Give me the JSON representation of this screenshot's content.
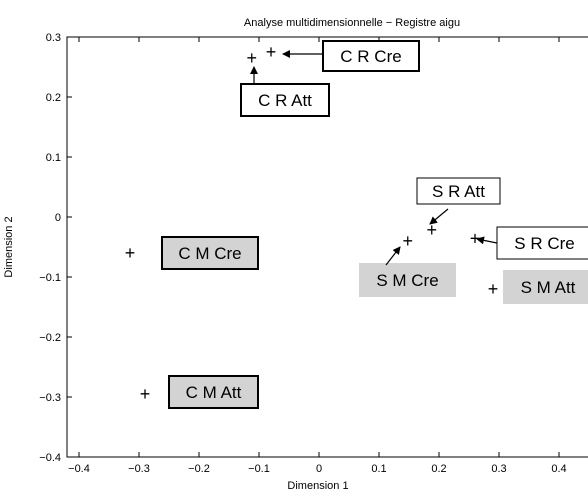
{
  "chart_data": {
    "type": "scatter",
    "title": "Analyse multidimensionnelle − Registre aigu",
    "xlabel": "Dimension 1",
    "ylabel": "Dimension 2",
    "xlim": [
      -0.42,
      0.48
    ],
    "ylim": [
      -0.4,
      0.3
    ],
    "xticks": [
      "−0.4",
      "−0.3",
      "−0.2",
      "−0.1",
      "0",
      "0.1",
      "0.2",
      "0.3",
      "0.4"
    ],
    "xtick_values": [
      -0.4,
      -0.3,
      -0.2,
      -0.1,
      0,
      0.1,
      0.2,
      0.3,
      0.4
    ],
    "yticks": [
      "0.3",
      "0.2",
      "0.1",
      "0",
      "−0.1",
      "−0.2",
      "−0.3",
      "−0.4"
    ],
    "ytick_values": [
      0.3,
      0.2,
      0.1,
      0,
      -0.1,
      -0.2,
      -0.3,
      -0.4
    ],
    "grid": false,
    "label_fill_colors": {
      "white": "#ffffff",
      "gray": "#d3d3d3"
    },
    "points": [
      {
        "label": "C R Cre",
        "x": -0.08,
        "y": 0.275,
        "fill": "white",
        "border": "thick",
        "arrow": true
      },
      {
        "label": "C R Att",
        "x": -0.112,
        "y": 0.265,
        "fill": "white",
        "border": "thick",
        "arrow": true
      },
      {
        "label": "S R Att",
        "x": 0.188,
        "y": -0.022,
        "fill": "white",
        "border": "thin",
        "arrow": true
      },
      {
        "label": "S R Cre",
        "x": 0.26,
        "y": -0.036,
        "fill": "white",
        "border": "thin",
        "arrow": true
      },
      {
        "label": "S M Cre",
        "x": 0.148,
        "y": -0.04,
        "fill": "gray",
        "border": "none",
        "arrow": true
      },
      {
        "label": "S M Att",
        "x": 0.29,
        "y": -0.12,
        "fill": "gray",
        "border": "none",
        "arrow": false
      },
      {
        "label": "C M Cre",
        "x": -0.315,
        "y": -0.06,
        "fill": "gray",
        "border": "thick",
        "arrow": false
      },
      {
        "label": "C M Att",
        "x": -0.29,
        "y": -0.295,
        "fill": "gray",
        "border": "thick",
        "arrow": false
      }
    ]
  }
}
